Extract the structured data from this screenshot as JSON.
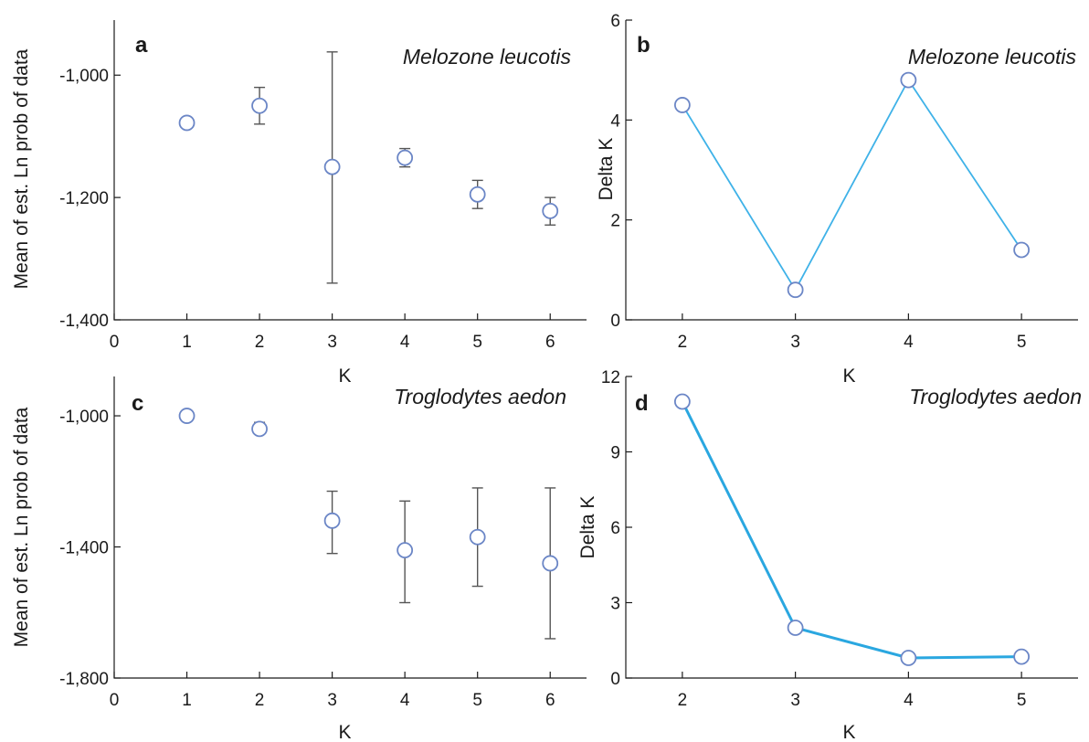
{
  "chart_data": [
    {
      "panel": "a",
      "type": "scatter",
      "annotation": "Melozone leucotis",
      "xlabel": "K",
      "ylabel": "Mean of est. Ln prob of data",
      "xlim": [
        0,
        6.5
      ],
      "ylim": [
        -1400,
        -910
      ],
      "xticks": [
        "0",
        "1",
        "2",
        "3",
        "4",
        "5",
        "6"
      ],
      "yticks": [
        "-1,400",
        "-1,200",
        "-1,000"
      ],
      "x": [
        1,
        2,
        3,
        4,
        5,
        6
      ],
      "y": [
        -1078,
        -1050,
        -1150,
        -1135,
        -1195,
        -1222
      ],
      "err_low": [
        -1078,
        -1080,
        -1340,
        -1150,
        -1218,
        -1245
      ],
      "err_high": [
        -1078,
        -1020,
        -962,
        -1120,
        -1172,
        -1200
      ],
      "marker_color": "#6b86c6",
      "error_color": "#555555"
    },
    {
      "panel": "b",
      "type": "line",
      "annotation": "Melozone leucotis",
      "xlabel": "K",
      "ylabel": "Delta K",
      "xlim": [
        1.5,
        5.5
      ],
      "ylim": [
        0,
        6
      ],
      "xticks": [
        "2",
        "3",
        "4",
        "5"
      ],
      "yticks": [
        "0",
        "2",
        "4",
        "6"
      ],
      "x": [
        2,
        3,
        4,
        5
      ],
      "y": [
        4.3,
        0.6,
        4.8,
        1.4
      ],
      "line_color": "#3fb2e8",
      "marker_color": "#6b86c6"
    },
    {
      "panel": "c",
      "type": "scatter",
      "annotation": "Troglodytes aedon",
      "xlabel": "K",
      "ylabel": "Mean of est. Ln prob of data",
      "xlim": [
        0,
        6.5
      ],
      "ylim": [
        -1800,
        -880
      ],
      "xticks": [
        "0",
        "1",
        "2",
        "3",
        "4",
        "5",
        "6"
      ],
      "yticks": [
        "-1,800",
        "-1,400",
        "-1,000"
      ],
      "x": [
        1,
        2,
        3,
        4,
        5,
        6
      ],
      "y": [
        -1000,
        -1040,
        -1320,
        -1410,
        -1370,
        -1450
      ],
      "err_low": [
        -1000,
        -1055,
        -1420,
        -1570,
        -1520,
        -1680
      ],
      "err_high": [
        -1000,
        -1020,
        -1230,
        -1260,
        -1220,
        -1220
      ],
      "marker_color": "#6b86c6",
      "error_color": "#555555"
    },
    {
      "panel": "d",
      "type": "line",
      "annotation": "Troglodytes aedon",
      "xlabel": "K",
      "ylabel": "Delta K",
      "xlim": [
        1.5,
        5.5
      ],
      "ylim": [
        0,
        12
      ],
      "xticks": [
        "2",
        "3",
        "4",
        "5"
      ],
      "yticks": [
        "0",
        "3",
        "6",
        "9",
        "12"
      ],
      "x": [
        2,
        3,
        4,
        5
      ],
      "y": [
        11.0,
        2.0,
        0.8,
        0.85
      ],
      "line_color": "#2aa7e0",
      "marker_color": "#6b86c6"
    }
  ]
}
